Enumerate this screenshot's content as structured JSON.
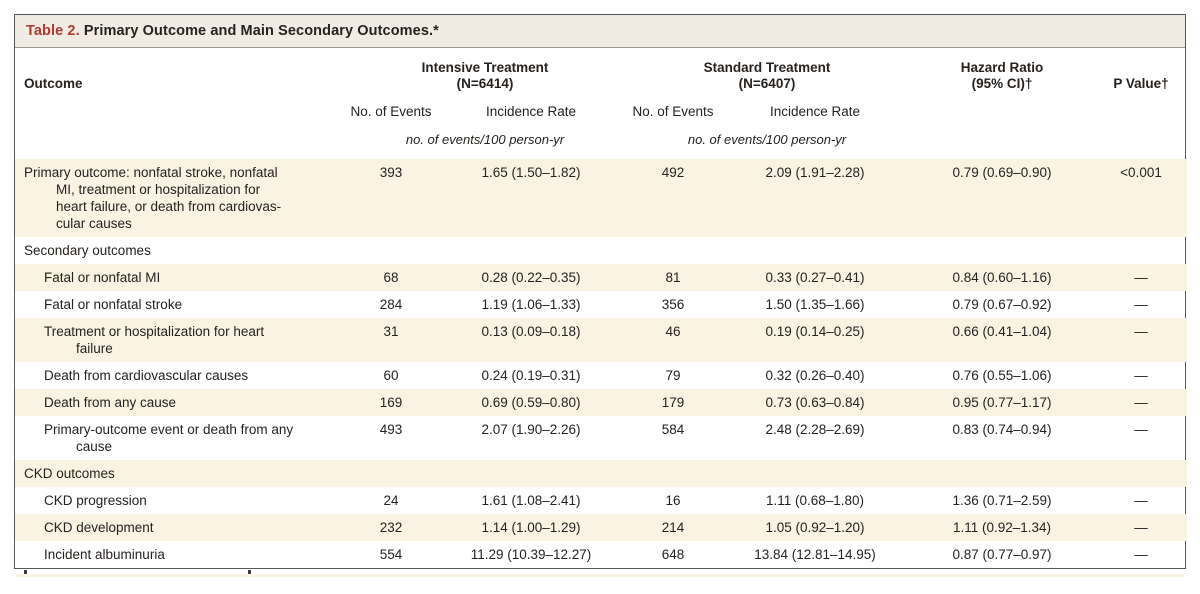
{
  "title": {
    "label": "Table 2.",
    "text": " Primary Outcome and Main Secondary Outcomes.*"
  },
  "header": {
    "outcome": "Outcome",
    "group_intensive": {
      "name": "Intensive Treatment",
      "n": "(N=6414)"
    },
    "group_standard": {
      "name": "Standard Treatment",
      "n": "(N=6407)"
    },
    "hazard_line1": "Hazard Ratio",
    "hazard_line2": "(95% CI)†",
    "p_value": "P Value†",
    "events": "No. of Events",
    "rate": "Incidence Rate",
    "units": "no. of events/100 person-yr"
  },
  "rows": [
    {
      "type": "data",
      "indent": 0,
      "label": "Primary outcome: nonfatal stroke, nonfatal\nMI, treatment or hospitalization for\nheart failure, or death from cardiovas-\ncular causes",
      "cells": [
        "393",
        "1.65 (1.50–1.82)",
        "492",
        "2.09 (1.91–2.28)",
        "0.79 (0.69–0.90)",
        "<0.001"
      ]
    },
    {
      "type": "section",
      "indent": 0,
      "label": "Secondary outcomes"
    },
    {
      "type": "data",
      "indent": 1,
      "label": "Fatal or nonfatal MI",
      "cells": [
        "68",
        "0.28 (0.22–0.35)",
        "81",
        "0.33 (0.27–0.41)",
        "0.84 (0.60–1.16)",
        "—"
      ]
    },
    {
      "type": "data",
      "indent": 1,
      "label": "Fatal or nonfatal stroke",
      "cells": [
        "284",
        "1.19 (1.06–1.33)",
        "356",
        "1.50 (1.35–1.66)",
        "0.79 (0.67–0.92)",
        "—"
      ]
    },
    {
      "type": "data",
      "indent": 1,
      "label": "Treatment or hospitalization for heart\nfailure",
      "cells": [
        "31",
        "0.13 (0.09–0.18)",
        "46",
        "0.19 (0.14–0.25)",
        "0.66 (0.41–1.04)",
        "—"
      ]
    },
    {
      "type": "data",
      "indent": 1,
      "label": "Death from cardiovascular causes",
      "cells": [
        "60",
        "0.24 (0.19–0.31)",
        "79",
        "0.32 (0.26–0.40)",
        "0.76 (0.55–1.06)",
        "—"
      ]
    },
    {
      "type": "data",
      "indent": 1,
      "label": "Death from any cause",
      "cells": [
        "169",
        "0.69 (0.59–0.80)",
        "179",
        "0.73 (0.63–0.84)",
        "0.95 (0.77–1.17)",
        "—"
      ]
    },
    {
      "type": "data",
      "indent": 1,
      "label": "Primary-outcome event or death from any\ncause",
      "cells": [
        "493",
        "2.07 (1.90–2.26)",
        "584",
        "2.48 (2.28–2.69)",
        "0.83 (0.74–0.94)",
        "—"
      ]
    },
    {
      "type": "section",
      "indent": 0,
      "label": "CKD outcomes"
    },
    {
      "type": "data",
      "indent": 1,
      "label": "CKD progression",
      "cells": [
        "24",
        "1.61 (1.08–2.41)",
        "16",
        "1.11 (0.68–1.80)",
        "1.36 (0.71–2.59)",
        "—"
      ]
    },
    {
      "type": "data",
      "indent": 1,
      "label": "CKD development",
      "cells": [
        "232",
        "1.14 (1.00–1.29)",
        "214",
        "1.05 (0.92–1.20)",
        "1.11 (0.92–1.34)",
        "—"
      ]
    },
    {
      "type": "data",
      "indent": 1,
      "label": "Incident albuminuria",
      "cells": [
        "554",
        "11.29 (10.39–12.27)",
        "648",
        "13.84 (12.81–14.95)",
        "0.87 (0.77–0.97)",
        "—"
      ]
    }
  ],
  "colors": {
    "accent_red": "#af3a30",
    "row_shade": "#faf3e2",
    "titlebar_bg": "#f0ece3",
    "border_dark": "#55565a"
  }
}
